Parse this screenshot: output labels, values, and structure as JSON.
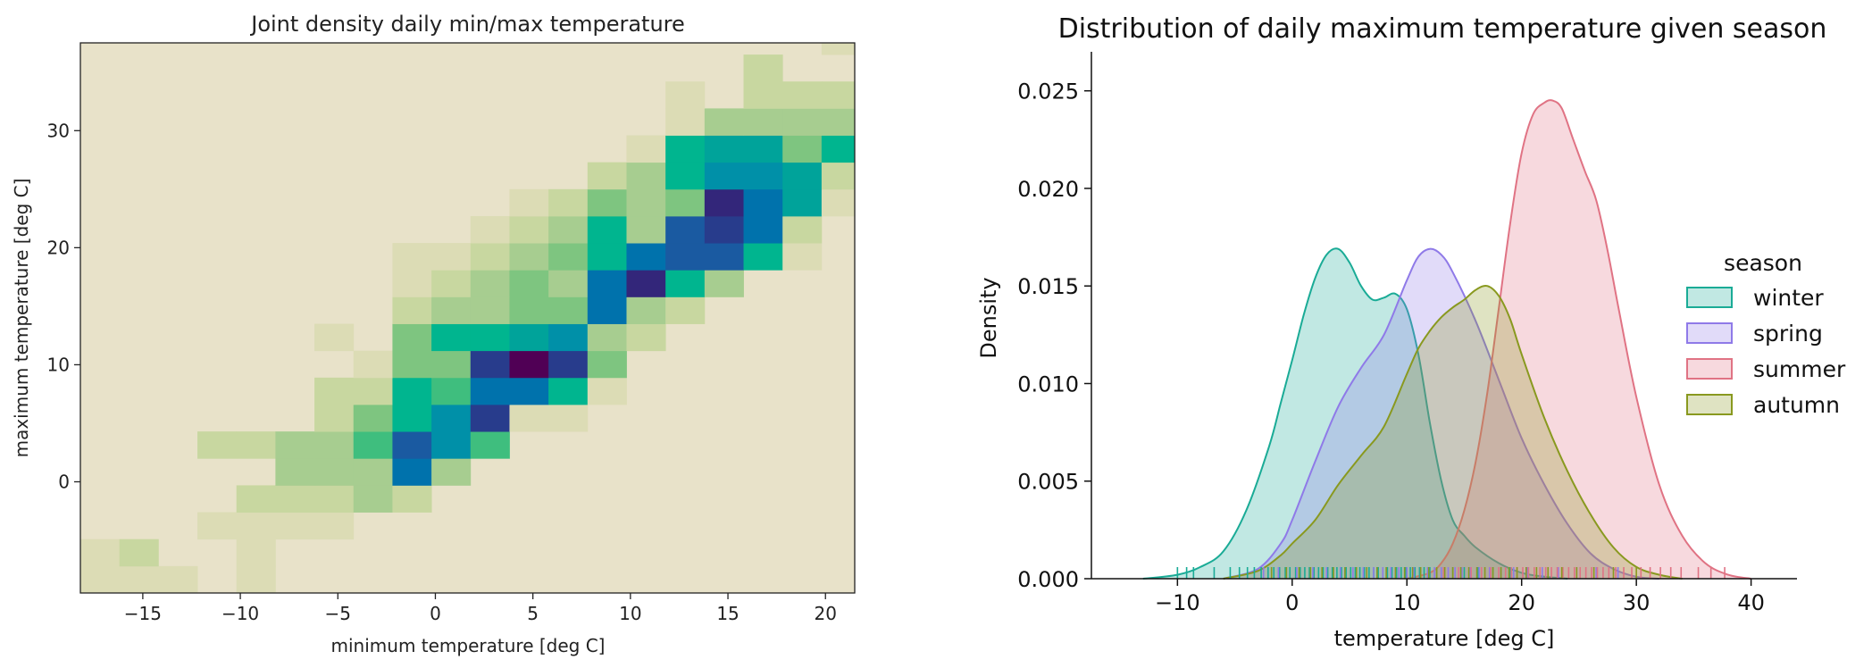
{
  "chart_data": [
    {
      "type": "heatmap",
      "title": "Joint density daily min/max temperature",
      "xlabel": "minimum temperature [deg C]",
      "ylabel": "maximum temperature [deg C]",
      "xlim": [
        -18.2,
        21.5
      ],
      "ylim": [
        -9.5,
        37.5
      ],
      "xticks": [
        -15,
        -10,
        -5,
        0,
        5,
        10,
        15,
        20
      ],
      "yticks": [
        0,
        10,
        20,
        30
      ],
      "x_edges": [
        -18.2,
        -16.2,
        -14.2,
        -12.2,
        -10.2,
        -8.2,
        -6.2,
        -4.2,
        -2.2,
        -0.2,
        1.8,
        3.8,
        5.8,
        7.8,
        9.8,
        11.8,
        13.8,
        15.8,
        17.8,
        19.8,
        21.8
      ],
      "y_edges": [
        -9.5,
        -7.2,
        -4.9,
        -2.6,
        -0.3,
        2.0,
        4.3,
        6.6,
        8.9,
        11.2,
        13.5,
        15.8,
        18.1,
        20.4,
        22.7,
        25.0,
        27.3,
        29.6,
        31.9,
        34.2,
        36.5,
        38.8
      ],
      "colormap": [
        "#e8e2c9",
        "#dcdcb5",
        "#c8d7a0",
        "#a7cd90",
        "#7ec580",
        "#3fbe7e",
        "#00b58f",
        "#00a39a",
        "#0090a8",
        "#0072ac",
        "#1a5aa1",
        "#283c8c",
        "#33267a",
        "#500055"
      ],
      "counts": [
        [
          1,
          1,
          1,
          0,
          1,
          0,
          0,
          0,
          0,
          0,
          0,
          0,
          0,
          0,
          0,
          0,
          0,
          0,
          0,
          0,
          0
        ],
        [
          1,
          2,
          0,
          0,
          1,
          0,
          0,
          0,
          0,
          0,
          0,
          0,
          0,
          0,
          0,
          0,
          0,
          0,
          0,
          0,
          0
        ],
        [
          0,
          0,
          0,
          1,
          1,
          1,
          1,
          0,
          0,
          0,
          0,
          0,
          0,
          0,
          0,
          0,
          0,
          0,
          0,
          0,
          0
        ],
        [
          0,
          0,
          0,
          0,
          2,
          2,
          2,
          3,
          2,
          0,
          0,
          0,
          0,
          0,
          0,
          0,
          0,
          0,
          0,
          0,
          0
        ],
        [
          0,
          0,
          0,
          0,
          0,
          3,
          3,
          3,
          9,
          3,
          0,
          0,
          0,
          0,
          0,
          0,
          0,
          0,
          0,
          0,
          0
        ],
        [
          0,
          0,
          0,
          2,
          2,
          3,
          3,
          5,
          10,
          8,
          5,
          0,
          0,
          0,
          0,
          0,
          0,
          0,
          0,
          0,
          0
        ],
        [
          0,
          0,
          0,
          0,
          0,
          0,
          2,
          4,
          6,
          8,
          11,
          1,
          1,
          0,
          0,
          0,
          0,
          0,
          0,
          0,
          0
        ],
        [
          0,
          0,
          0,
          0,
          0,
          0,
          2,
          2,
          6,
          5,
          9,
          9,
          6,
          1,
          0,
          0,
          0,
          0,
          0,
          0,
          0
        ],
        [
          0,
          0,
          0,
          0,
          0,
          0,
          0,
          1,
          4,
          4,
          11,
          13,
          11,
          4,
          0,
          0,
          0,
          0,
          0,
          0,
          0
        ],
        [
          0,
          0,
          0,
          0,
          0,
          0,
          1,
          0,
          4,
          6,
          6,
          7,
          8,
          3,
          2,
          0,
          0,
          0,
          0,
          0,
          0
        ],
        [
          0,
          0,
          0,
          0,
          0,
          0,
          0,
          0,
          2,
          3,
          3,
          4,
          4,
          9,
          3,
          2,
          0,
          0,
          0,
          0,
          0
        ],
        [
          0,
          0,
          0,
          0,
          0,
          0,
          0,
          0,
          1,
          2,
          3,
          4,
          3,
          9,
          12,
          6,
          3,
          0,
          0,
          0,
          0
        ],
        [
          0,
          0,
          0,
          0,
          0,
          0,
          0,
          0,
          1,
          1,
          2,
          3,
          4,
          6,
          9,
          10,
          10,
          6,
          1,
          0,
          0
        ],
        [
          0,
          0,
          0,
          0,
          0,
          0,
          0,
          0,
          0,
          0,
          1,
          2,
          3,
          6,
          3,
          10,
          11,
          9,
          2,
          0,
          0
        ],
        [
          0,
          0,
          0,
          0,
          0,
          0,
          0,
          0,
          0,
          0,
          0,
          1,
          2,
          4,
          3,
          4,
          12,
          9,
          7,
          1,
          0
        ],
        [
          0,
          0,
          0,
          0,
          0,
          0,
          0,
          0,
          0,
          0,
          0,
          0,
          0,
          2,
          3,
          6,
          8,
          8,
          7,
          2,
          0
        ],
        [
          0,
          0,
          0,
          0,
          0,
          0,
          0,
          0,
          0,
          0,
          0,
          0,
          0,
          0,
          1,
          6,
          7,
          7,
          4,
          6,
          1
        ],
        [
          0,
          0,
          0,
          0,
          0,
          0,
          0,
          0,
          0,
          0,
          0,
          0,
          0,
          0,
          0,
          1,
          3,
          3,
          3,
          3,
          1
        ],
        [
          0,
          0,
          0,
          0,
          0,
          0,
          0,
          0,
          0,
          0,
          0,
          0,
          0,
          0,
          0,
          1,
          0,
          2,
          2,
          2,
          0
        ],
        [
          0,
          0,
          0,
          0,
          0,
          0,
          0,
          0,
          0,
          0,
          0,
          0,
          0,
          0,
          0,
          0,
          0,
          2,
          0,
          0,
          0
        ],
        [
          0,
          0,
          0,
          0,
          0,
          0,
          0,
          0,
          0,
          0,
          0,
          0,
          0,
          0,
          0,
          0,
          0,
          0,
          0,
          1,
          0
        ]
      ]
    },
    {
      "type": "area",
      "title": "Distribution of daily maximum temperature given season",
      "xlabel": "temperature [deg C]",
      "ylabel": "Density",
      "xlim": [
        -17.5,
        44
      ],
      "ylim": [
        0,
        0.027
      ],
      "xticks": [
        -10,
        0,
        10,
        20,
        30,
        40
      ],
      "yticks": [
        0.0,
        0.005,
        0.01,
        0.015,
        0.02,
        0.025
      ],
      "ytick_labels": [
        "0.000",
        "0.005",
        "0.010",
        "0.015",
        "0.020",
        "0.025"
      ],
      "legend": {
        "title": "season",
        "placement": "right"
      },
      "series": [
        {
          "name": "winter",
          "color": "#1aab96",
          "x": [
            -13,
            -10,
            -8,
            -6,
            -4,
            -2,
            -1,
            0,
            1,
            2,
            3,
            4,
            5,
            6,
            7,
            8,
            9,
            10,
            11,
            12,
            13,
            14,
            15,
            16,
            18,
            20,
            22,
            24
          ],
          "y": [
            0,
            0.0002,
            0.0006,
            0.0014,
            0.0035,
            0.0068,
            0.009,
            0.0112,
            0.0135,
            0.0154,
            0.0166,
            0.0169,
            0.0162,
            0.015,
            0.0143,
            0.0144,
            0.0146,
            0.0138,
            0.0115,
            0.008,
            0.005,
            0.003,
            0.0022,
            0.0016,
            0.0008,
            0.0003,
            0.0001,
            0
          ],
          "rug": [
            -10,
            -9.2,
            -8.6,
            -6.8,
            -5.4,
            -4.6,
            -3.9,
            -3.3,
            -2.7,
            -2.1,
            -1.6,
            -1.1,
            -0.6,
            -0.2,
            0.3,
            0.7,
            1.1,
            1.5,
            1.9,
            2.3,
            2.7,
            3.1,
            3.5,
            3.9,
            4.3,
            4.7,
            5.1,
            5.5,
            5.9,
            6.3,
            6.7,
            7.1,
            7.5,
            7.9,
            8.3,
            8.7,
            9.1,
            9.5,
            9.9,
            10.3,
            10.7,
            11.1,
            11.5,
            12,
            12.6,
            13.2,
            14,
            15,
            16.2,
            17.5,
            19,
            20.5
          ]
        },
        {
          "name": "spring",
          "color": "#8f7ae8",
          "x": [
            -6,
            -3,
            -1,
            0,
            2,
            4,
            6,
            8,
            10,
            11,
            12,
            13,
            14,
            16,
            18,
            20,
            22,
            24,
            26,
            28,
            30,
            32
          ],
          "y": [
            0,
            0.0005,
            0.0018,
            0.003,
            0.006,
            0.0088,
            0.0108,
            0.0125,
            0.0153,
            0.0165,
            0.0169,
            0.0166,
            0.0157,
            0.0132,
            0.0102,
            0.0072,
            0.0048,
            0.0028,
            0.0013,
            0.0005,
            0.0001,
            0
          ],
          "rug": [
            -2.5,
            -1.2,
            0.4,
            1.8,
            3,
            4.2,
            5.3,
            6.2,
            7.1,
            7.9,
            8.6,
            9.3,
            10,
            10.6,
            11.2,
            11.8,
            12.4,
            13,
            13.6,
            14.2,
            14.8,
            15.5,
            16.3,
            17.2,
            18.2,
            19.3,
            20.5,
            21.8,
            23.2,
            24.8,
            26.5,
            28.4
          ]
        },
        {
          "name": "summer",
          "color": "#e07384",
          "x": [
            10,
            12,
            13,
            14,
            15,
            16,
            17,
            18,
            19,
            20,
            21,
            22,
            22.7,
            23.5,
            24.5,
            25.5,
            26.5,
            27.5,
            28.5,
            30,
            32,
            34,
            36,
            38,
            40
          ],
          "y": [
            0,
            0.0003,
            0.0008,
            0.0018,
            0.0035,
            0.006,
            0.0095,
            0.0138,
            0.0182,
            0.0218,
            0.0238,
            0.0244,
            0.0245,
            0.0241,
            0.0225,
            0.0209,
            0.0194,
            0.0168,
            0.0137,
            0.0093,
            0.0048,
            0.0022,
            0.0008,
            0.0002,
            0
          ],
          "rug": [
            13.2,
            14.5,
            15.6,
            16.5,
            17.3,
            18,
            18.6,
            19.1,
            19.6,
            20.1,
            20.6,
            21.1,
            21.6,
            22.1,
            22.6,
            23.1,
            23.6,
            24.1,
            24.6,
            25.1,
            25.6,
            26.1,
            26.6,
            27.1,
            27.6,
            28.2,
            28.9,
            29.6,
            30.4,
            31.2,
            32.1,
            33,
            33.9,
            35.4,
            36.5,
            37.7
          ]
        },
        {
          "name": "autumn",
          "color": "#89991f",
          "x": [
            -6,
            -3,
            -1,
            0,
            2,
            4,
            6,
            8,
            10,
            11,
            12,
            13,
            14,
            15,
            16,
            17,
            18,
            19,
            20,
            22,
            24,
            26,
            28,
            30,
            32,
            34
          ],
          "y": [
            0,
            0.0004,
            0.0012,
            0.0018,
            0.003,
            0.0048,
            0.0063,
            0.0078,
            0.0105,
            0.0118,
            0.0127,
            0.0134,
            0.0139,
            0.0143,
            0.0148,
            0.015,
            0.0145,
            0.0133,
            0.0115,
            0.0082,
            0.0055,
            0.0033,
            0.0016,
            0.0006,
            0.0002,
            0
          ],
          "rug": [
            -1.8,
            -0.5,
            0.6,
            1.6,
            2.6,
            3.6,
            4.6,
            5.6,
            6.5,
            7.4,
            8.2,
            9,
            9.8,
            10.5,
            11.2,
            11.9,
            12.6,
            13.3,
            14,
            14.7,
            15.4,
            16.1,
            16.8,
            17.5,
            18.2,
            18.9,
            19.6,
            20.4,
            21.3,
            22.3,
            23.5,
            24.8,
            26.3,
            28,
            30
          ]
        }
      ]
    }
  ]
}
